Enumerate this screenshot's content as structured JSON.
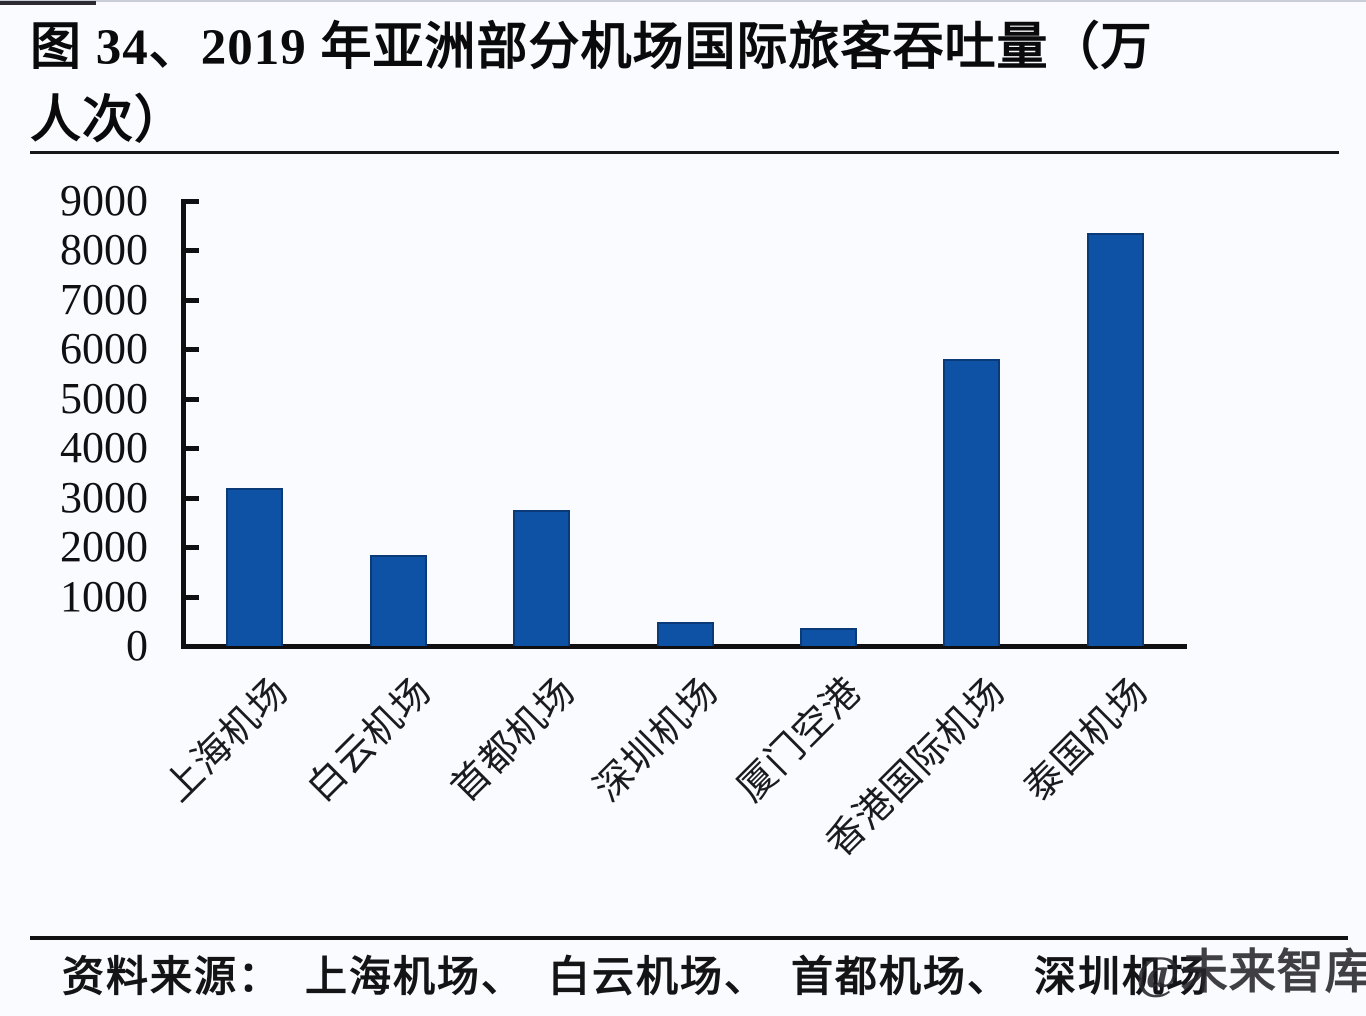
{
  "page": {
    "background": "#fafbfe"
  },
  "title": {
    "line1": "图 34、2019 年亚洲部分机场国际旅客吞吐量（万",
    "line2": "人次）",
    "full": "图 34、2019 年亚洲部分机场国际旅客吞吐量（万人次）"
  },
  "chart_data": {
    "type": "bar",
    "title": "2019 年亚洲部分机场国际旅客吞吐量",
    "unit": "万人次",
    "categories": [
      "上海机场",
      "白云机场",
      "首都机场",
      "深圳机场",
      "厦门空港",
      "香港国际机场",
      "泰国机场"
    ],
    "values": [
      3200,
      1850,
      2750,
      480,
      370,
      5800,
      8350
    ],
    "xlabel": "",
    "ylabel": "",
    "ylim": [
      0,
      9000
    ],
    "ytick_step": 1000,
    "yticks": [
      9000,
      8000,
      7000,
      6000,
      5000,
      4000,
      3000,
      2000,
      1000,
      0
    ],
    "grid": false,
    "legend_position": "none",
    "bar_color": "#0e52a5",
    "bar_border_color": "#0a3a78",
    "axis_color": "#101013",
    "tick_side": "inside",
    "xlabel_rotation_deg": 45
  },
  "source": {
    "label": "资料来源：",
    "items": [
      "上海机场",
      "白云机场",
      "首都机场",
      "深圳机场"
    ],
    "display": "资料来源：　上海机场、　白云机场、　首都机场、　深圳机场"
  },
  "watermark": "@未来智库"
}
